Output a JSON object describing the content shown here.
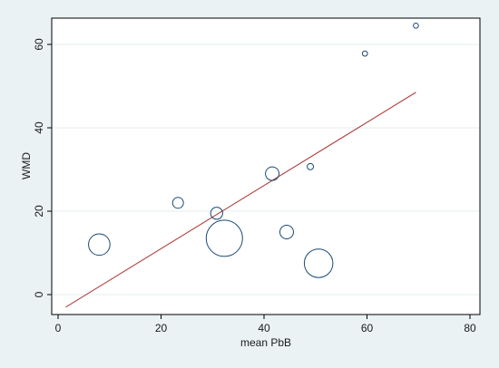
{
  "chart_data": {
    "type": "scatter",
    "xlabel": "mean PbB",
    "ylabel": "WMD",
    "xlim": [
      0,
      80
    ],
    "ylim": [
      -5,
      66
    ],
    "xticks": [
      0,
      20,
      40,
      60,
      80
    ],
    "yticks": [
      0,
      20,
      40,
      60
    ],
    "grid": "horizontal",
    "marker_color": "#1a4876",
    "fit_color": "#b0403f",
    "points": [
      {
        "x": 8.0,
        "y": 12.0,
        "weight": 0.35
      },
      {
        "x": 23.3,
        "y": 22.0,
        "weight": 0.09
      },
      {
        "x": 30.8,
        "y": 19.5,
        "weight": 0.11
      },
      {
        "x": 32.3,
        "y": 13.5,
        "weight": 1.0
      },
      {
        "x": 41.6,
        "y": 29.0,
        "weight": 0.14
      },
      {
        "x": 44.4,
        "y": 15.0,
        "weight": 0.14
      },
      {
        "x": 49.0,
        "y": 30.7,
        "weight": 0.03
      },
      {
        "x": 50.6,
        "y": 7.5,
        "weight": 0.62
      },
      {
        "x": 59.6,
        "y": 57.8,
        "weight": 0.02
      },
      {
        "x": 69.5,
        "y": 64.5,
        "weight": 0.02
      }
    ],
    "fit_line": {
      "x": [
        1.5,
        69.5
      ],
      "y": [
        -3.0,
        48.5
      ]
    }
  }
}
